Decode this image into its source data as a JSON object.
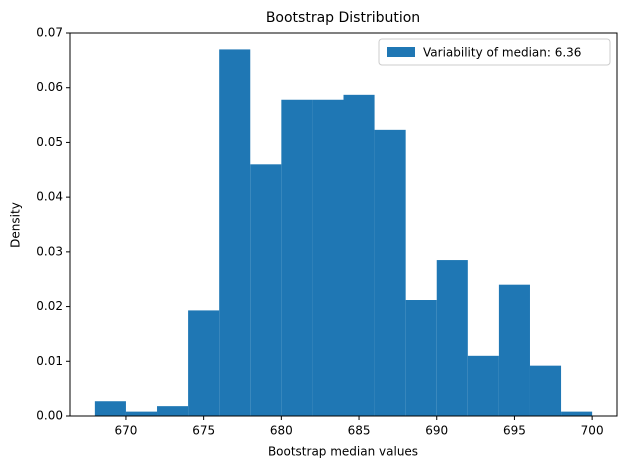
{
  "chart_data": {
    "type": "histogram",
    "title": "Bootstrap Distribution",
    "x_label": "Bootstrap median values",
    "y_label": "Density",
    "bins": [
      668,
      670,
      672,
      674,
      676,
      678,
      680,
      682,
      684,
      686,
      688,
      690,
      692,
      694,
      696,
      698,
      700
    ],
    "series": [
      {
        "name": "Variability of median: 6.36",
        "color": "#1f77b4",
        "values": [
          0.0027,
          0.0008,
          0.0018,
          0.0193,
          0.067,
          0.046,
          0.0578,
          0.0578,
          0.0587,
          0.0523,
          0.0212,
          0.0285,
          0.011,
          0.024,
          0.0092,
          0.0008
        ]
      }
    ],
    "xlim": [
      666.4,
      701.6
    ],
    "ylim": [
      0,
      0.07
    ],
    "xticks": [
      670,
      675,
      680,
      685,
      690,
      695,
      700
    ],
    "yticks": [
      {
        "value": 0,
        "label": "0.00"
      },
      0.01,
      0.02,
      0.03,
      0.04,
      0.05,
      0.06,
      0.07
    ],
    "legend": "upper right",
    "grid": false
  }
}
